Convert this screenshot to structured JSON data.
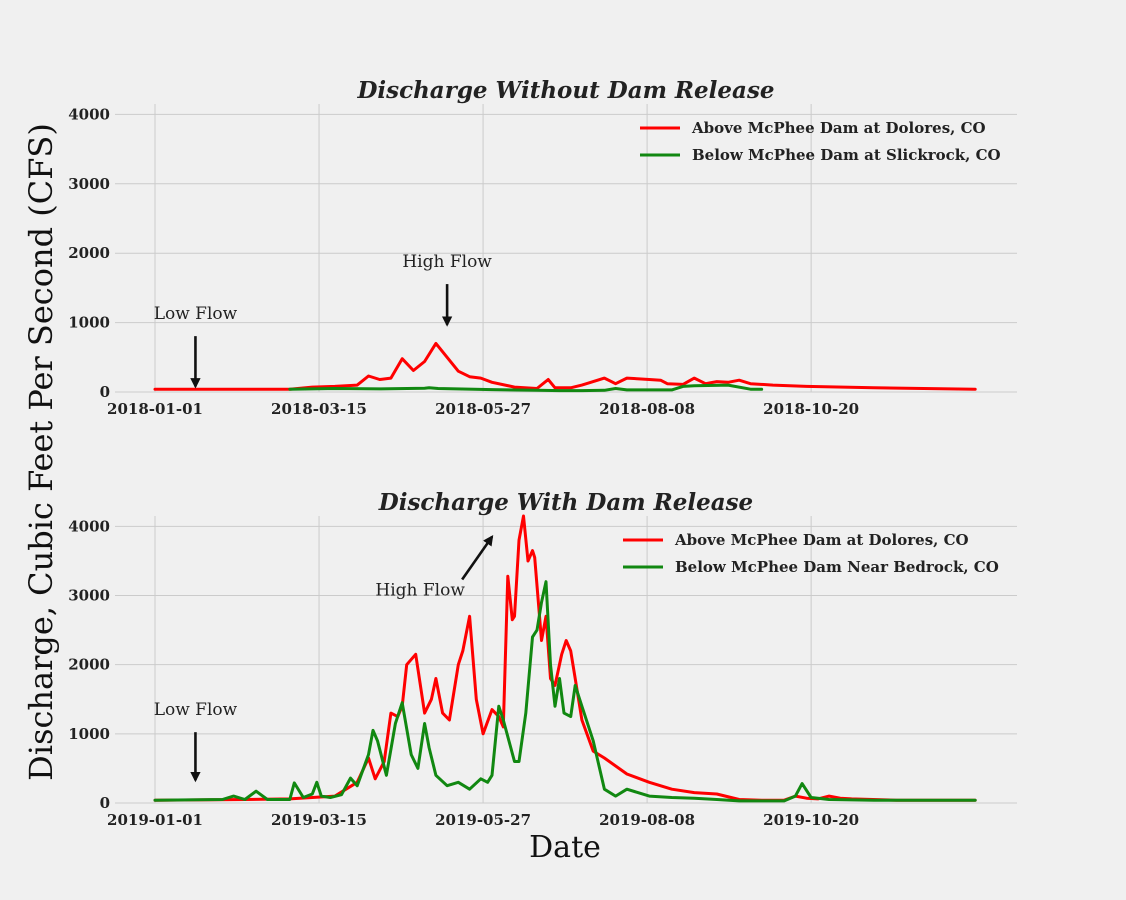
{
  "figure": {
    "ylabel": "Discharge, Cubic Feet Per Second (CFS)",
    "xlabel": "Date"
  },
  "colors": {
    "above": "#ff0000",
    "below": "#118811",
    "arrow": "#111111"
  },
  "chart_data": [
    {
      "type": "line",
      "title": "Discharge Without Dam Release",
      "xlabel": "",
      "ylabel": "Discharge, Cubic Feet Per Second (CFS)",
      "xlim": [
        0,
        365
      ],
      "ylim": [
        0,
        4150
      ],
      "x_tick_values": [
        0,
        73,
        146,
        219,
        292
      ],
      "x_tick_labels": [
        "2018-01-01",
        "2018-03-15",
        "2018-05-27",
        "2018-08-08",
        "2018-10-20"
      ],
      "y_ticks": [
        0,
        1000,
        2000,
        3000,
        4000
      ],
      "grid": true,
      "legend_position": "top-right",
      "series": [
        {
          "name": "Above McPhee Dam at Dolores, CO",
          "color": "#ff0000",
          "x": [
            0,
            60,
            70,
            80,
            90,
            95,
            100,
            105,
            110,
            115,
            120,
            125,
            130,
            135,
            140,
            145,
            150,
            160,
            170,
            175,
            178,
            185,
            190,
            195,
            200,
            205,
            210,
            220,
            225,
            228,
            235,
            240,
            245,
            250,
            255,
            260,
            265,
            275,
            290,
            320,
            365
          ],
          "y": [
            40,
            40,
            70,
            80,
            100,
            230,
            180,
            200,
            480,
            310,
            440,
            700,
            500,
            300,
            220,
            200,
            140,
            70,
            50,
            180,
            60,
            60,
            100,
            150,
            200,
            120,
            200,
            180,
            170,
            120,
            110,
            200,
            120,
            150,
            140,
            170,
            120,
            100,
            80,
            60,
            40
          ]
        },
        {
          "name": "Below McPhee Dam at Slickrock, CO",
          "color": "#118811",
          "x": [
            60,
            80,
            100,
            120,
            122,
            126,
            150,
            170,
            180,
            190,
            200,
            205,
            210,
            230,
            235,
            240,
            255,
            265,
            270
          ],
          "y": [
            40,
            50,
            45,
            55,
            60,
            50,
            35,
            25,
            20,
            20,
            25,
            50,
            30,
            30,
            80,
            90,
            100,
            40,
            40
          ]
        }
      ],
      "annotations": [
        {
          "text": "Low Flow",
          "x": 18,
          "y": 1050,
          "arrow_to": [
            18,
            80
          ]
        },
        {
          "text": "High Flow",
          "x": 130,
          "y": 1800,
          "arrow_to": [
            130,
            970
          ]
        }
      ]
    },
    {
      "type": "line",
      "title": "Discharge With Dam Release",
      "xlabel": "Date",
      "ylabel": "Discharge, Cubic Feet Per Second (CFS)",
      "xlim": [
        0,
        365
      ],
      "ylim": [
        0,
        4150
      ],
      "x_tick_values": [
        0,
        73,
        146,
        219,
        292
      ],
      "x_tick_labels": [
        "2019-01-01",
        "2019-03-15",
        "2019-05-27",
        "2019-08-08",
        "2019-10-20"
      ],
      "y_ticks": [
        0,
        1000,
        2000,
        3000,
        4000
      ],
      "grid": true,
      "legend_position": "top-right",
      "series": [
        {
          "name": "Above McPhee Dam at Dolores, CO",
          "color": "#ff0000",
          "x": [
            0,
            40,
            60,
            80,
            85,
            90,
            95,
            98,
            102,
            105,
            108,
            110,
            112,
            116,
            120,
            123,
            125,
            128,
            131,
            135,
            137,
            140,
            143,
            146,
            150,
            153,
            155,
            157,
            159,
            160,
            162,
            164,
            166,
            168,
            169,
            172,
            174,
            176,
            178,
            181,
            183,
            185,
            187,
            190,
            195,
            200,
            210,
            220,
            230,
            240,
            250,
            260,
            270,
            280,
            285,
            290,
            295,
            300,
            305,
            310,
            330,
            365
          ],
          "y": [
            40,
            50,
            60,
            100,
            200,
            300,
            650,
            350,
            600,
            1300,
            1250,
            1400,
            2000,
            2150,
            1300,
            1500,
            1800,
            1300,
            1200,
            2000,
            2200,
            2700,
            1500,
            1000,
            1350,
            1250,
            1100,
            3280,
            2650,
            2700,
            3800,
            4150,
            3500,
            3650,
            3550,
            2350,
            2700,
            1800,
            1700,
            2150,
            2350,
            2200,
            1800,
            1200,
            750,
            650,
            420,
            300,
            200,
            150,
            130,
            50,
            40,
            40,
            100,
            70,
            60,
            100,
            70,
            60,
            40,
            40
          ]
        },
        {
          "name": "Below McPhee Dam Near Bedrock, CO",
          "color": "#118811",
          "x": [
            0,
            30,
            35,
            40,
            45,
            50,
            60,
            62,
            66,
            70,
            72,
            74,
            78,
            83,
            87,
            90,
            95,
            97,
            99,
            103,
            107,
            110,
            114,
            117,
            120,
            122,
            125,
            130,
            135,
            140,
            145,
            148,
            150,
            153,
            155,
            160,
            162,
            165,
            168,
            170,
            172,
            174,
            176,
            178,
            180,
            182,
            185,
            187,
            190,
            195,
            200,
            205,
            210,
            220,
            230,
            240,
            250,
            260,
            270,
            280,
            285,
            288,
            292,
            300,
            320,
            365
          ],
          "y": [
            40,
            50,
            100,
            50,
            170,
            50,
            50,
            290,
            80,
            130,
            300,
            100,
            80,
            120,
            360,
            250,
            700,
            1050,
            900,
            400,
            1150,
            1450,
            700,
            500,
            1150,
            800,
            400,
            250,
            300,
            200,
            350,
            300,
            400,
            1400,
            1200,
            600,
            600,
            1300,
            2400,
            2500,
            2900,
            3200,
            2000,
            1400,
            1800,
            1300,
            1250,
            1700,
            1400,
            900,
            200,
            100,
            200,
            100,
            80,
            70,
            50,
            30,
            30,
            30,
            100,
            280,
            80,
            50,
            40,
            40
          ]
        }
      ],
      "annotations": [
        {
          "text": "Low Flow",
          "x": 18,
          "y": 1270,
          "arrow_to": [
            18,
            330
          ]
        },
        {
          "text": "High Flow",
          "x": 118,
          "y": 3000,
          "arrow_to": [
            150,
            3850
          ]
        }
      ]
    }
  ]
}
